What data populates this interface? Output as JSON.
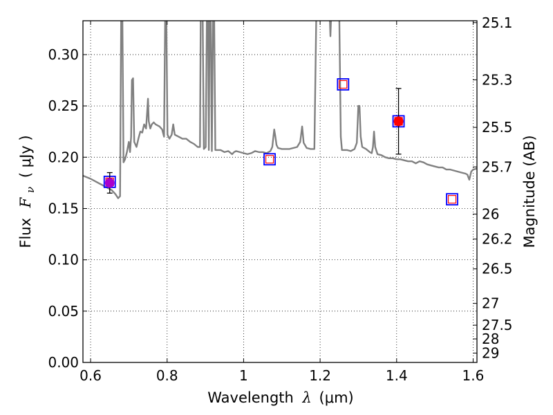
{
  "chart_data": {
    "type": "scatter",
    "xlabel": "Wavelength",
    "xlabel_symbol": "λ",
    "xlabel_unit": "(μm)",
    "ylabel": "Flux",
    "ylabel_symbol": "F",
    "ylabel_symbol_sub": "ν",
    "ylabel_unit": "( μJy )",
    "y2label": "Magnitude (AB)",
    "xlim": [
      0.58,
      1.61
    ],
    "ylim": [
      0.0,
      0.333
    ],
    "grid": true,
    "x_ticks": [
      {
        "value": 0.6,
        "label": "0.6"
      },
      {
        "value": 0.8,
        "label": "0.8"
      },
      {
        "value": 1.0,
        "label": "1"
      },
      {
        "value": 1.2,
        "label": "1.2"
      },
      {
        "value": 1.4,
        "label": "1.4"
      },
      {
        "value": 1.6,
        "label": "1.6"
      }
    ],
    "y_ticks": [
      {
        "value": 0.0,
        "label": "0.00"
      },
      {
        "value": 0.05,
        "label": "0.05"
      },
      {
        "value": 0.1,
        "label": "0.10"
      },
      {
        "value": 0.15,
        "label": "0.15"
      },
      {
        "value": 0.2,
        "label": "0.20"
      },
      {
        "value": 0.25,
        "label": "0.25"
      },
      {
        "value": 0.3,
        "label": "0.30"
      }
    ],
    "y2_ticks": [
      {
        "value": 25.1,
        "label": "25.1"
      },
      {
        "value": 25.3,
        "label": "25.3"
      },
      {
        "value": 25.5,
        "label": "25.5"
      },
      {
        "value": 25.7,
        "label": "25.7"
      },
      {
        "value": 26.0,
        "label": "26"
      },
      {
        "value": 26.2,
        "label": "26.2"
      },
      {
        "value": 26.5,
        "label": "26.5"
      },
      {
        "value": 27.0,
        "label": "27"
      },
      {
        "value": 27.5,
        "label": "27.5"
      },
      {
        "value": 28.0,
        "label": "28"
      },
      {
        "value": 29.0,
        "label": "29"
      }
    ],
    "series": [
      {
        "kind": "model-sed-line",
        "color": "#808080",
        "points": [
          [
            0.58,
            0.182
          ],
          [
            0.6,
            0.179
          ],
          [
            0.62,
            0.175
          ],
          [
            0.64,
            0.171
          ],
          [
            0.655,
            0.168
          ],
          [
            0.665,
            0.164
          ],
          [
            0.672,
            0.16
          ],
          [
            0.677,
            0.162
          ],
          [
            0.68,
            0.34
          ],
          [
            0.683,
            0.34
          ],
          [
            0.686,
            0.195
          ],
          [
            0.69,
            0.198
          ],
          [
            0.695,
            0.205
          ],
          [
            0.7,
            0.215
          ],
          [
            0.703,
            0.205
          ],
          [
            0.706,
            0.22
          ],
          [
            0.708,
            0.275
          ],
          [
            0.711,
            0.277
          ],
          [
            0.714,
            0.215
          ],
          [
            0.72,
            0.21
          ],
          [
            0.725,
            0.218
          ],
          [
            0.73,
            0.225
          ],
          [
            0.735,
            0.224
          ],
          [
            0.74,
            0.232
          ],
          [
            0.745,
            0.228
          ],
          [
            0.748,
            0.245
          ],
          [
            0.75,
            0.257
          ],
          [
            0.752,
            0.235
          ],
          [
            0.756,
            0.228
          ],
          [
            0.76,
            0.232
          ],
          [
            0.765,
            0.234
          ],
          [
            0.77,
            0.232
          ],
          [
            0.78,
            0.23
          ],
          [
            0.787,
            0.227
          ],
          [
            0.792,
            0.22
          ],
          [
            0.795,
            0.34
          ],
          [
            0.798,
            0.34
          ],
          [
            0.801,
            0.222
          ],
          [
            0.806,
            0.218
          ],
          [
            0.812,
            0.222
          ],
          [
            0.816,
            0.232
          ],
          [
            0.82,
            0.222
          ],
          [
            0.83,
            0.22
          ],
          [
            0.84,
            0.218
          ],
          [
            0.85,
            0.218
          ],
          [
            0.86,
            0.215
          ],
          [
            0.87,
            0.213
          ],
          [
            0.88,
            0.21
          ],
          [
            0.886,
            0.21
          ],
          [
            0.888,
            0.34
          ],
          [
            0.893,
            0.34
          ],
          [
            0.896,
            0.208
          ],
          [
            0.901,
            0.21
          ],
          [
            0.904,
            0.34
          ],
          [
            0.907,
            0.34
          ],
          [
            0.909,
            0.207
          ],
          [
            0.911,
            0.34
          ],
          [
            0.914,
            0.34
          ],
          [
            0.917,
            0.206
          ],
          [
            0.92,
            0.34
          ],
          [
            0.923,
            0.34
          ],
          [
            0.926,
            0.207
          ],
          [
            0.94,
            0.207
          ],
          [
            0.95,
            0.205
          ],
          [
            0.96,
            0.206
          ],
          [
            0.97,
            0.203
          ],
          [
            0.975,
            0.205
          ],
          [
            0.98,
            0.206
          ],
          [
            0.99,
            0.205
          ],
          [
            1.0,
            0.204
          ],
          [
            1.01,
            0.203
          ],
          [
            1.02,
            0.204
          ],
          [
            1.03,
            0.206
          ],
          [
            1.04,
            0.205
          ],
          [
            1.05,
            0.205
          ],
          [
            1.06,
            0.204
          ],
          [
            1.07,
            0.206
          ],
          [
            1.075,
            0.21
          ],
          [
            1.08,
            0.227
          ],
          [
            1.083,
            0.22
          ],
          [
            1.086,
            0.212
          ],
          [
            1.09,
            0.209
          ],
          [
            1.1,
            0.208
          ],
          [
            1.12,
            0.208
          ],
          [
            1.14,
            0.21
          ],
          [
            1.148,
            0.215
          ],
          [
            1.153,
            0.23
          ],
          [
            1.157,
            0.214
          ],
          [
            1.165,
            0.209
          ],
          [
            1.175,
            0.208
          ],
          [
            1.185,
            0.208
          ],
          [
            1.19,
            0.34
          ],
          [
            1.2,
            0.34
          ],
          [
            1.21,
            0.34
          ],
          [
            1.22,
            0.34
          ],
          [
            1.225,
            0.34
          ],
          [
            1.227,
            0.318
          ],
          [
            1.229,
            0.34
          ],
          [
            1.245,
            0.34
          ],
          [
            1.25,
            0.34
          ],
          [
            1.254,
            0.22
          ],
          [
            1.257,
            0.207
          ],
          [
            1.27,
            0.207
          ],
          [
            1.28,
            0.206
          ],
          [
            1.29,
            0.208
          ],
          [
            1.296,
            0.214
          ],
          [
            1.3,
            0.25
          ],
          [
            1.303,
            0.25
          ],
          [
            1.306,
            0.22
          ],
          [
            1.31,
            0.21
          ],
          [
            1.32,
            0.208
          ],
          [
            1.33,
            0.205
          ],
          [
            1.335,
            0.204
          ],
          [
            1.338,
            0.21
          ],
          [
            1.341,
            0.225
          ],
          [
            1.344,
            0.21
          ],
          [
            1.35,
            0.203
          ],
          [
            1.36,
            0.202
          ],
          [
            1.37,
            0.2
          ],
          [
            1.38,
            0.199
          ],
          [
            1.39,
            0.199
          ],
          [
            1.4,
            0.198
          ],
          [
            1.41,
            0.198
          ],
          [
            1.42,
            0.197
          ],
          [
            1.43,
            0.196
          ],
          [
            1.44,
            0.196
          ],
          [
            1.45,
            0.194
          ],
          [
            1.46,
            0.196
          ],
          [
            1.47,
            0.195
          ],
          [
            1.48,
            0.193
          ],
          [
            1.49,
            0.192
          ],
          [
            1.5,
            0.191
          ],
          [
            1.51,
            0.19
          ],
          [
            1.52,
            0.19
          ],
          [
            1.53,
            0.188
          ],
          [
            1.54,
            0.188
          ],
          [
            1.55,
            0.187
          ],
          [
            1.56,
            0.186
          ],
          [
            1.57,
            0.185
          ],
          [
            1.58,
            0.184
          ],
          [
            1.585,
            0.183
          ],
          [
            1.59,
            0.178
          ],
          [
            1.595,
            0.186
          ],
          [
            1.6,
            0.188
          ],
          [
            1.61,
            0.189
          ]
        ]
      },
      {
        "kind": "model-bandpass-flux",
        "points": [
          {
            "x": 0.65,
            "y": 0.176
          },
          {
            "x": 1.068,
            "y": 0.198
          },
          {
            "x": 1.26,
            "y": 0.271
          },
          {
            "x": 1.405,
            "y": 0.235
          },
          {
            "x": 1.545,
            "y": 0.159
          }
        ]
      },
      {
        "kind": "observed-detection",
        "points": [
          {
            "x": 0.65,
            "y": 0.175,
            "yerr": 0.01,
            "color": "#aa00cc"
          },
          {
            "x": 1.405,
            "y": 0.235,
            "yerr": 0.032,
            "color": "#ff0000"
          }
        ]
      }
    ]
  }
}
